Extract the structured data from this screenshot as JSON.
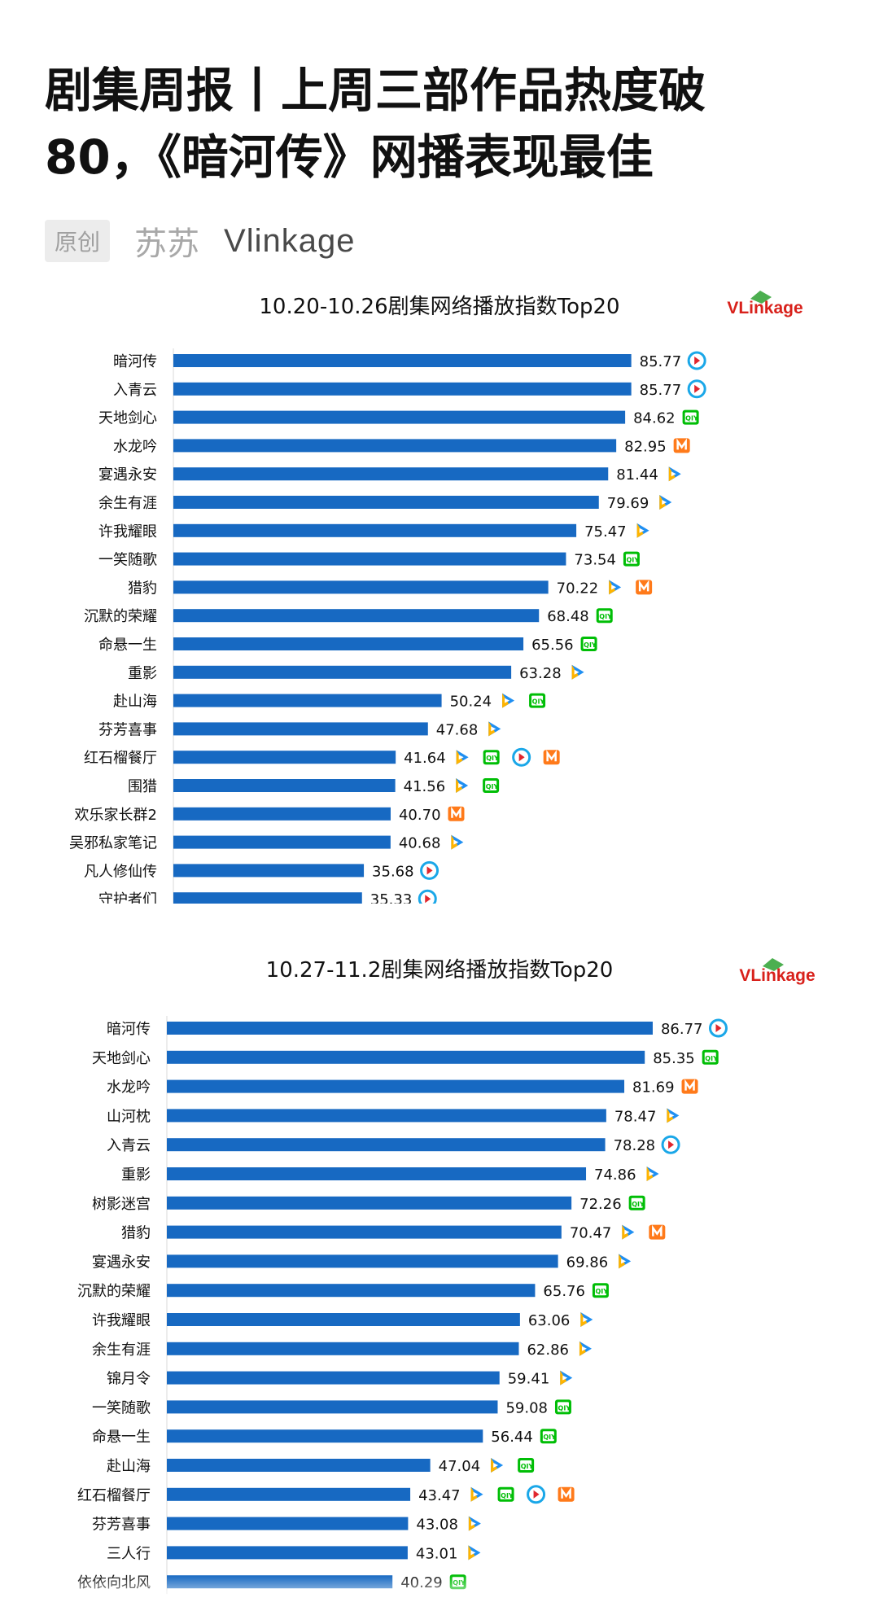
{
  "article": {
    "title_line1": "剧集周报丨上周三部作品热度破",
    "title_line2": "80，《暗河传》网播表现最佳",
    "badge": "原创",
    "author": "苏苏",
    "source": "Vlinkage"
  },
  "colors": {
    "bar": "#1769c2",
    "tencent": "#1f8ff2",
    "youku": "#1aa7e8",
    "iqiyi": "#00be06",
    "mango": "#ff7a1a"
  },
  "chart_data": [
    {
      "type": "bar",
      "orientation": "horizontal",
      "title": "10.20-10.26剧集网络播放指数Top20",
      "logo": "VLinkage",
      "categories": [
        "暗河传",
        "入青云",
        "天地剑心",
        "水龙吟",
        "宴遇永安",
        "余生有涯",
        "许我耀眼",
        "一笑随歌",
        "猎豹",
        "沉默的荣耀",
        "命悬一生",
        "重影",
        "赴山海",
        "芬芳喜事",
        "红石榴餐厅",
        "围猎",
        "欢乐家长群2",
        "吴邪私家笔记",
        "凡人修仙传",
        "守护者们"
      ],
      "values": [
        85.77,
        85.77,
        84.62,
        82.95,
        81.44,
        79.69,
        75.47,
        73.54,
        70.22,
        68.48,
        65.56,
        63.28,
        50.24,
        47.68,
        41.64,
        41.56,
        40.7,
        40.68,
        35.68,
        35.33
      ],
      "labels": [
        "85.77",
        "85.77",
        "84.62",
        "82.95",
        "81.44",
        "79.69",
        "75.47",
        "73.54",
        "70.22",
        "68.48",
        "65.56",
        "63.28",
        "50.24",
        "47.68",
        "41.64",
        "41.56",
        "40.70",
        "40.68",
        "35.68",
        "35.33"
      ],
      "platforms": [
        [
          "youku"
        ],
        [
          "youku"
        ],
        [
          "iqiyi"
        ],
        [
          "mango"
        ],
        [
          "tencent"
        ],
        [
          "tencent"
        ],
        [
          "tencent"
        ],
        [
          "iqiyi"
        ],
        [
          "tencent",
          "mango"
        ],
        [
          "iqiyi"
        ],
        [
          "iqiyi"
        ],
        [
          "tencent"
        ],
        [
          "tencent",
          "iqiyi"
        ],
        [
          "tencent"
        ],
        [
          "tencent",
          "iqiyi",
          "youku",
          "mango"
        ],
        [
          "tencent",
          "iqiyi"
        ],
        [
          "mango"
        ],
        [
          "tencent"
        ],
        [
          "youku"
        ],
        [
          "youku"
        ]
      ],
      "xlim": [
        0,
        100
      ]
    },
    {
      "type": "bar",
      "orientation": "horizontal",
      "title": "10.27-11.2剧集网络播放指数Top20",
      "logo": "VLinkage",
      "categories": [
        "暗河传",
        "天地剑心",
        "水龙吟",
        "山河枕",
        "入青云",
        "重影",
        "树影迷宫",
        "猎豹",
        "宴遇永安",
        "沉默的荣耀",
        "许我耀眼",
        "余生有涯",
        "锦月令",
        "一笑随歌",
        "命悬一生",
        "赴山海",
        "红石榴餐厅",
        "芬芳喜事",
        "三人行",
        "依依向北风"
      ],
      "values": [
        86.77,
        85.35,
        81.69,
        78.47,
        78.28,
        74.86,
        72.26,
        70.47,
        69.86,
        65.76,
        63.06,
        62.86,
        59.41,
        59.08,
        56.44,
        47.04,
        43.47,
        43.08,
        43.01,
        40.29
      ],
      "labels": [
        "86.77",
        "85.35",
        "81.69",
        "78.47",
        "78.28",
        "74.86",
        "72.26",
        "70.47",
        "69.86",
        "65.76",
        "63.06",
        "62.86",
        "59.41",
        "59.08",
        "56.44",
        "47.04",
        "43.47",
        "43.08",
        "43.01",
        "40.29"
      ],
      "platforms": [
        [
          "youku"
        ],
        [
          "iqiyi"
        ],
        [
          "mango"
        ],
        [
          "tencent"
        ],
        [
          "youku"
        ],
        [
          "tencent"
        ],
        [
          "iqiyi"
        ],
        [
          "tencent",
          "mango"
        ],
        [
          "tencent"
        ],
        [
          "iqiyi"
        ],
        [
          "tencent"
        ],
        [
          "tencent"
        ],
        [
          "tencent"
        ],
        [
          "iqiyi"
        ],
        [
          "iqiyi"
        ],
        [
          "tencent",
          "iqiyi"
        ],
        [
          "tencent",
          "iqiyi",
          "youku",
          "mango"
        ],
        [
          "tencent"
        ],
        [
          "tencent"
        ],
        [
          "iqiyi"
        ]
      ],
      "xlim": [
        0,
        100
      ]
    }
  ]
}
